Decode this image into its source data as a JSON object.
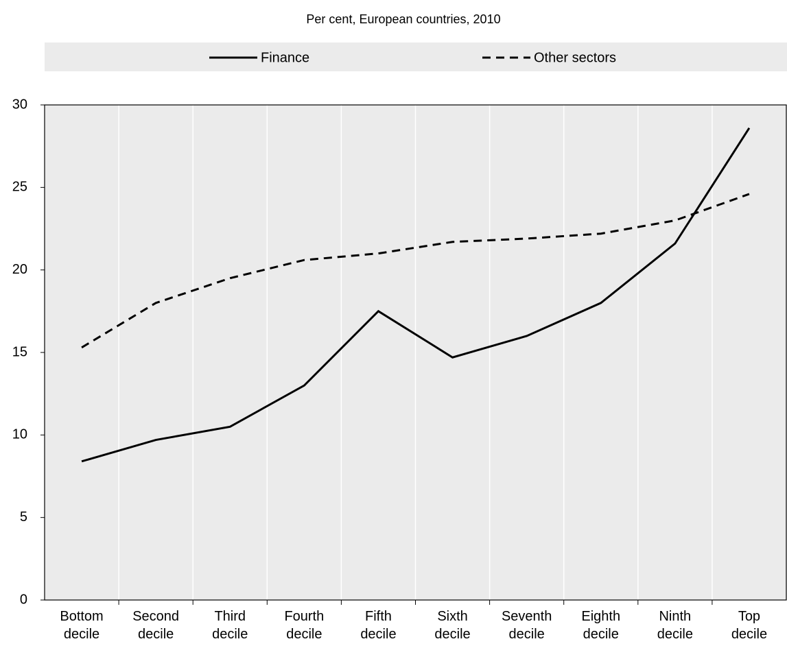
{
  "chart_data": {
    "type": "line",
    "subtitle": "Per cent, European countries, 2010",
    "categories": [
      "Bottom decile",
      "Second decile",
      "Third decile",
      "Fourth decile",
      "Fifth decile",
      "Sixth decile",
      "Seventh decile",
      "Eighth decile",
      "Ninth decile",
      "Top decile"
    ],
    "series": [
      {
        "name": "Finance",
        "color": "#000000",
        "dash": "solid",
        "values": [
          8.4,
          9.7,
          10.5,
          13.0,
          17.5,
          14.7,
          16.0,
          18.0,
          21.6,
          28.6
        ]
      },
      {
        "name": "Other sectors",
        "color": "#000000",
        "dash": "dashed",
        "values": [
          15.3,
          18.0,
          19.5,
          20.6,
          21.0,
          21.7,
          21.9,
          22.2,
          23.0,
          24.6
        ]
      }
    ],
    "ylim": [
      0,
      30
    ],
    "yticks": [
      0,
      5,
      10,
      15,
      20,
      25,
      30
    ],
    "grid": true,
    "legend": "top"
  }
}
